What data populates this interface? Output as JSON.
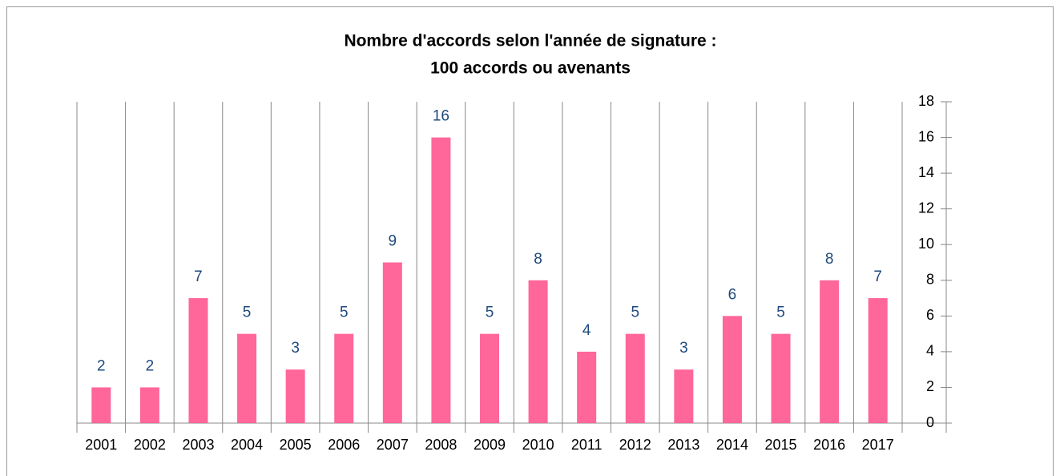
{
  "chart_data": {
    "type": "bar",
    "title": "Nombre d'accords selon l'année de signature :",
    "subtitle": "100 accords ou avenants",
    "categories": [
      "2001",
      "2002",
      "2003",
      "2004",
      "2005",
      "2006",
      "2007",
      "2008",
      "2009",
      "2010",
      "2011",
      "2012",
      "2013",
      "2014",
      "2015",
      "2016",
      "2017"
    ],
    "values": [
      2,
      2,
      7,
      5,
      3,
      5,
      9,
      16,
      5,
      8,
      4,
      5,
      3,
      6,
      5,
      8,
      7
    ],
    "color": "#ff6699",
    "ylim": [
      0,
      18
    ],
    "yticks": [
      0,
      2,
      4,
      6,
      8,
      10,
      12,
      14,
      16,
      18
    ],
    "grid": true
  }
}
